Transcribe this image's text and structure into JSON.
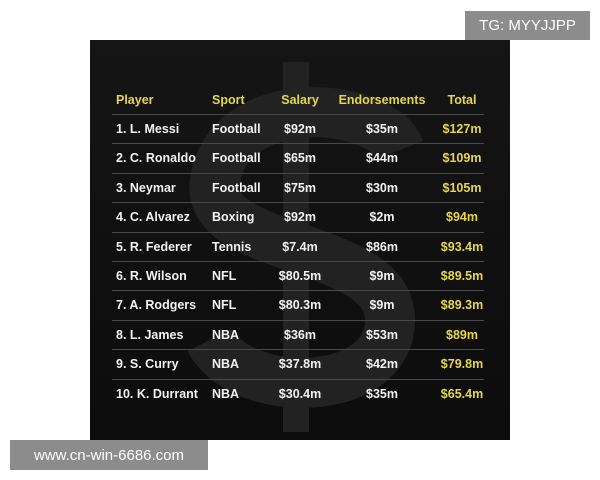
{
  "watermark_top": "TG: MYYJJPP",
  "watermark_bottom": "www.cn-win-6686.com",
  "table": {
    "header": [
      "Player",
      "Sport",
      "Salary",
      "Endorsements",
      "Total"
    ],
    "rows": [
      [
        "1. L. Messi",
        "Football",
        "$92m",
        "$35m",
        "$127m"
      ],
      [
        "2. C. Ronaldo",
        "Football",
        "$65m",
        "$44m",
        "$109m"
      ],
      [
        "3. Neymar",
        "Football",
        "$75m",
        "$30m",
        "$105m"
      ],
      [
        "4. C. Alvarez",
        "Boxing",
        "$92m",
        "$2m",
        "$94m"
      ],
      [
        "5. R. Federer",
        "Tennis",
        "$7.4m",
        "$86m",
        "$93.4m"
      ],
      [
        "6. R. Wilson",
        "NFL",
        "$80.5m",
        "$9m",
        "$89.5m"
      ],
      [
        "7. A. Rodgers",
        "NFL",
        "$80.3m",
        "$9m",
        "$89.3m"
      ],
      [
        "8. L. James",
        "NBA",
        "$36m",
        "$53m",
        "$89m"
      ],
      [
        "9. S. Curry",
        "NBA",
        "$37.8m",
        "$42m",
        "$79.8m"
      ],
      [
        "10. K. Durrant",
        "NBA",
        "$30.4m",
        "$35m",
        "$65.4m"
      ]
    ]
  }
}
